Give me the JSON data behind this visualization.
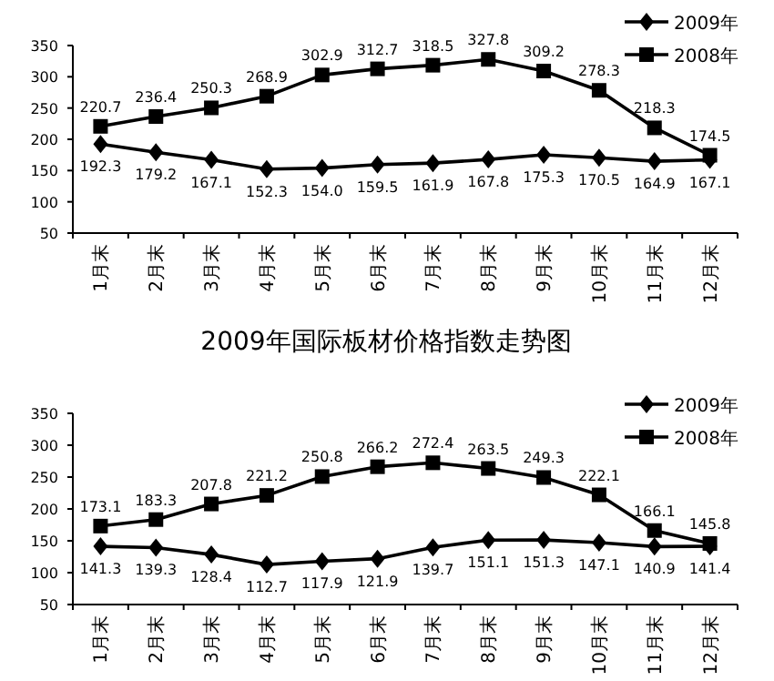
{
  "chart_data": [
    {
      "type": "line",
      "categories": [
        "1月末",
        "2月末",
        "3月末",
        "4月末",
        "5月末",
        "6月末",
        "7月末",
        "8月末",
        "9月末",
        "10月末",
        "11月末",
        "12月末"
      ],
      "series": [
        {
          "name": "2009年",
          "color": "#000000",
          "marker": "diamond",
          "values": [
            192.3,
            179.2,
            167.1,
            152.3,
            154.0,
            159.5,
            161.9,
            167.8,
            175.3,
            170.5,
            164.9,
            167.1
          ],
          "value_labels": [
            "192.3",
            "179.2",
            "167.1",
            "152.3",
            "154.0",
            "159.5",
            "161.9",
            "167.8",
            "175.3",
            "170.5",
            "164.9",
            "167.1"
          ]
        },
        {
          "name": "2008年",
          "color": "#000000",
          "marker": "square",
          "values": [
            220.7,
            236.4,
            250.3,
            268.9,
            302.9,
            312.7,
            318.5,
            327.8,
            309.2,
            278.3,
            218.3,
            174.5
          ],
          "value_labels": [
            "220.7",
            "236.4",
            "250.3",
            "268.9",
            "302.9",
            "312.7",
            "318.5",
            "327.8",
            "309.2",
            "278.3",
            "218.3",
            "174.5"
          ]
        }
      ],
      "ylim": [
        50,
        350
      ],
      "yticks": [
        50,
        100,
        150,
        200,
        250,
        300,
        350
      ],
      "grid": false,
      "legend": "top right"
    },
    {
      "type": "line",
      "title": "2009年国际板材价格指数走势图",
      "categories": [
        "1月末",
        "2月末",
        "3月末",
        "4月末",
        "5月末",
        "6月末",
        "7月末",
        "8月末",
        "9月末",
        "10月末",
        "11月末",
        "12月末"
      ],
      "series": [
        {
          "name": "2009年",
          "color": "#000000",
          "marker": "diamond",
          "values": [
            141.3,
            139.3,
            128.4,
            112.7,
            117.9,
            121.9,
            139.7,
            151.1,
            151.3,
            147.1,
            140.9,
            141.4
          ],
          "value_labels": [
            "141.3",
            "139.3",
            "128.4",
            "112.7",
            "117.9",
            "121.9",
            "139.7",
            "151.1",
            "151.3",
            "147.1",
            "140.9",
            "141.4"
          ]
        },
        {
          "name": "2008年",
          "color": "#000000",
          "marker": "square",
          "values": [
            173.1,
            183.3,
            207.8,
            221.2,
            250.8,
            266.2,
            272.4,
            263.5,
            249.3,
            222.1,
            166.1,
            145.8
          ],
          "value_labels": [
            "173.1",
            "183.3",
            "207.8",
            "221.2",
            "250.8",
            "266.2",
            "272.4",
            "263.5",
            "249.3",
            "222.1",
            "166.1",
            "145.8"
          ]
        }
      ],
      "ylim": [
        50,
        350
      ],
      "yticks": [
        50,
        100,
        150,
        200,
        250,
        300,
        350
      ],
      "grid": false,
      "legend": "top right"
    }
  ]
}
